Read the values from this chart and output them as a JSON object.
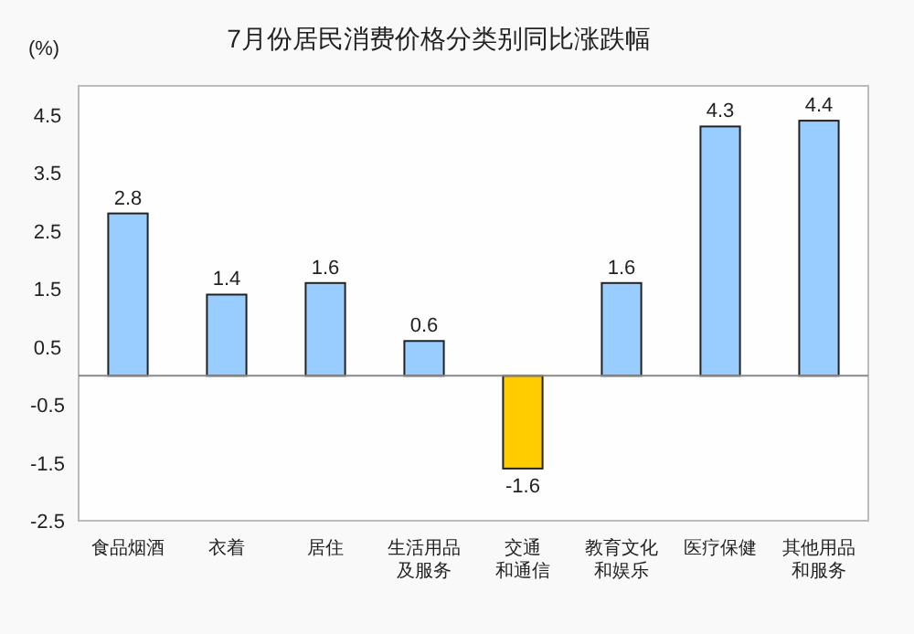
{
  "chart_data": {
    "type": "bar",
    "title": "7月份居民消费价格分类别同比涨跌幅",
    "ylabel": "(%)",
    "categories": [
      "食品烟酒",
      "衣着",
      "居住",
      "生活用品及服务",
      "交通和通信",
      "教育文化和娱乐",
      "医疗保健",
      "其他用品和服务"
    ],
    "values": [
      2.8,
      1.4,
      1.6,
      0.6,
      -1.6,
      1.6,
      4.3,
      4.4
    ],
    "colors": [
      "#99ccff",
      "#99ccff",
      "#99ccff",
      "#99ccff",
      "#ffcc00",
      "#99ccff",
      "#99ccff",
      "#99ccff"
    ],
    "ylim": [
      -2.5,
      5.0
    ],
    "yticks": [
      -2.5,
      -1.5,
      -0.5,
      0.5,
      1.5,
      2.5,
      3.5,
      4.5
    ],
    "data_labels": true
  }
}
